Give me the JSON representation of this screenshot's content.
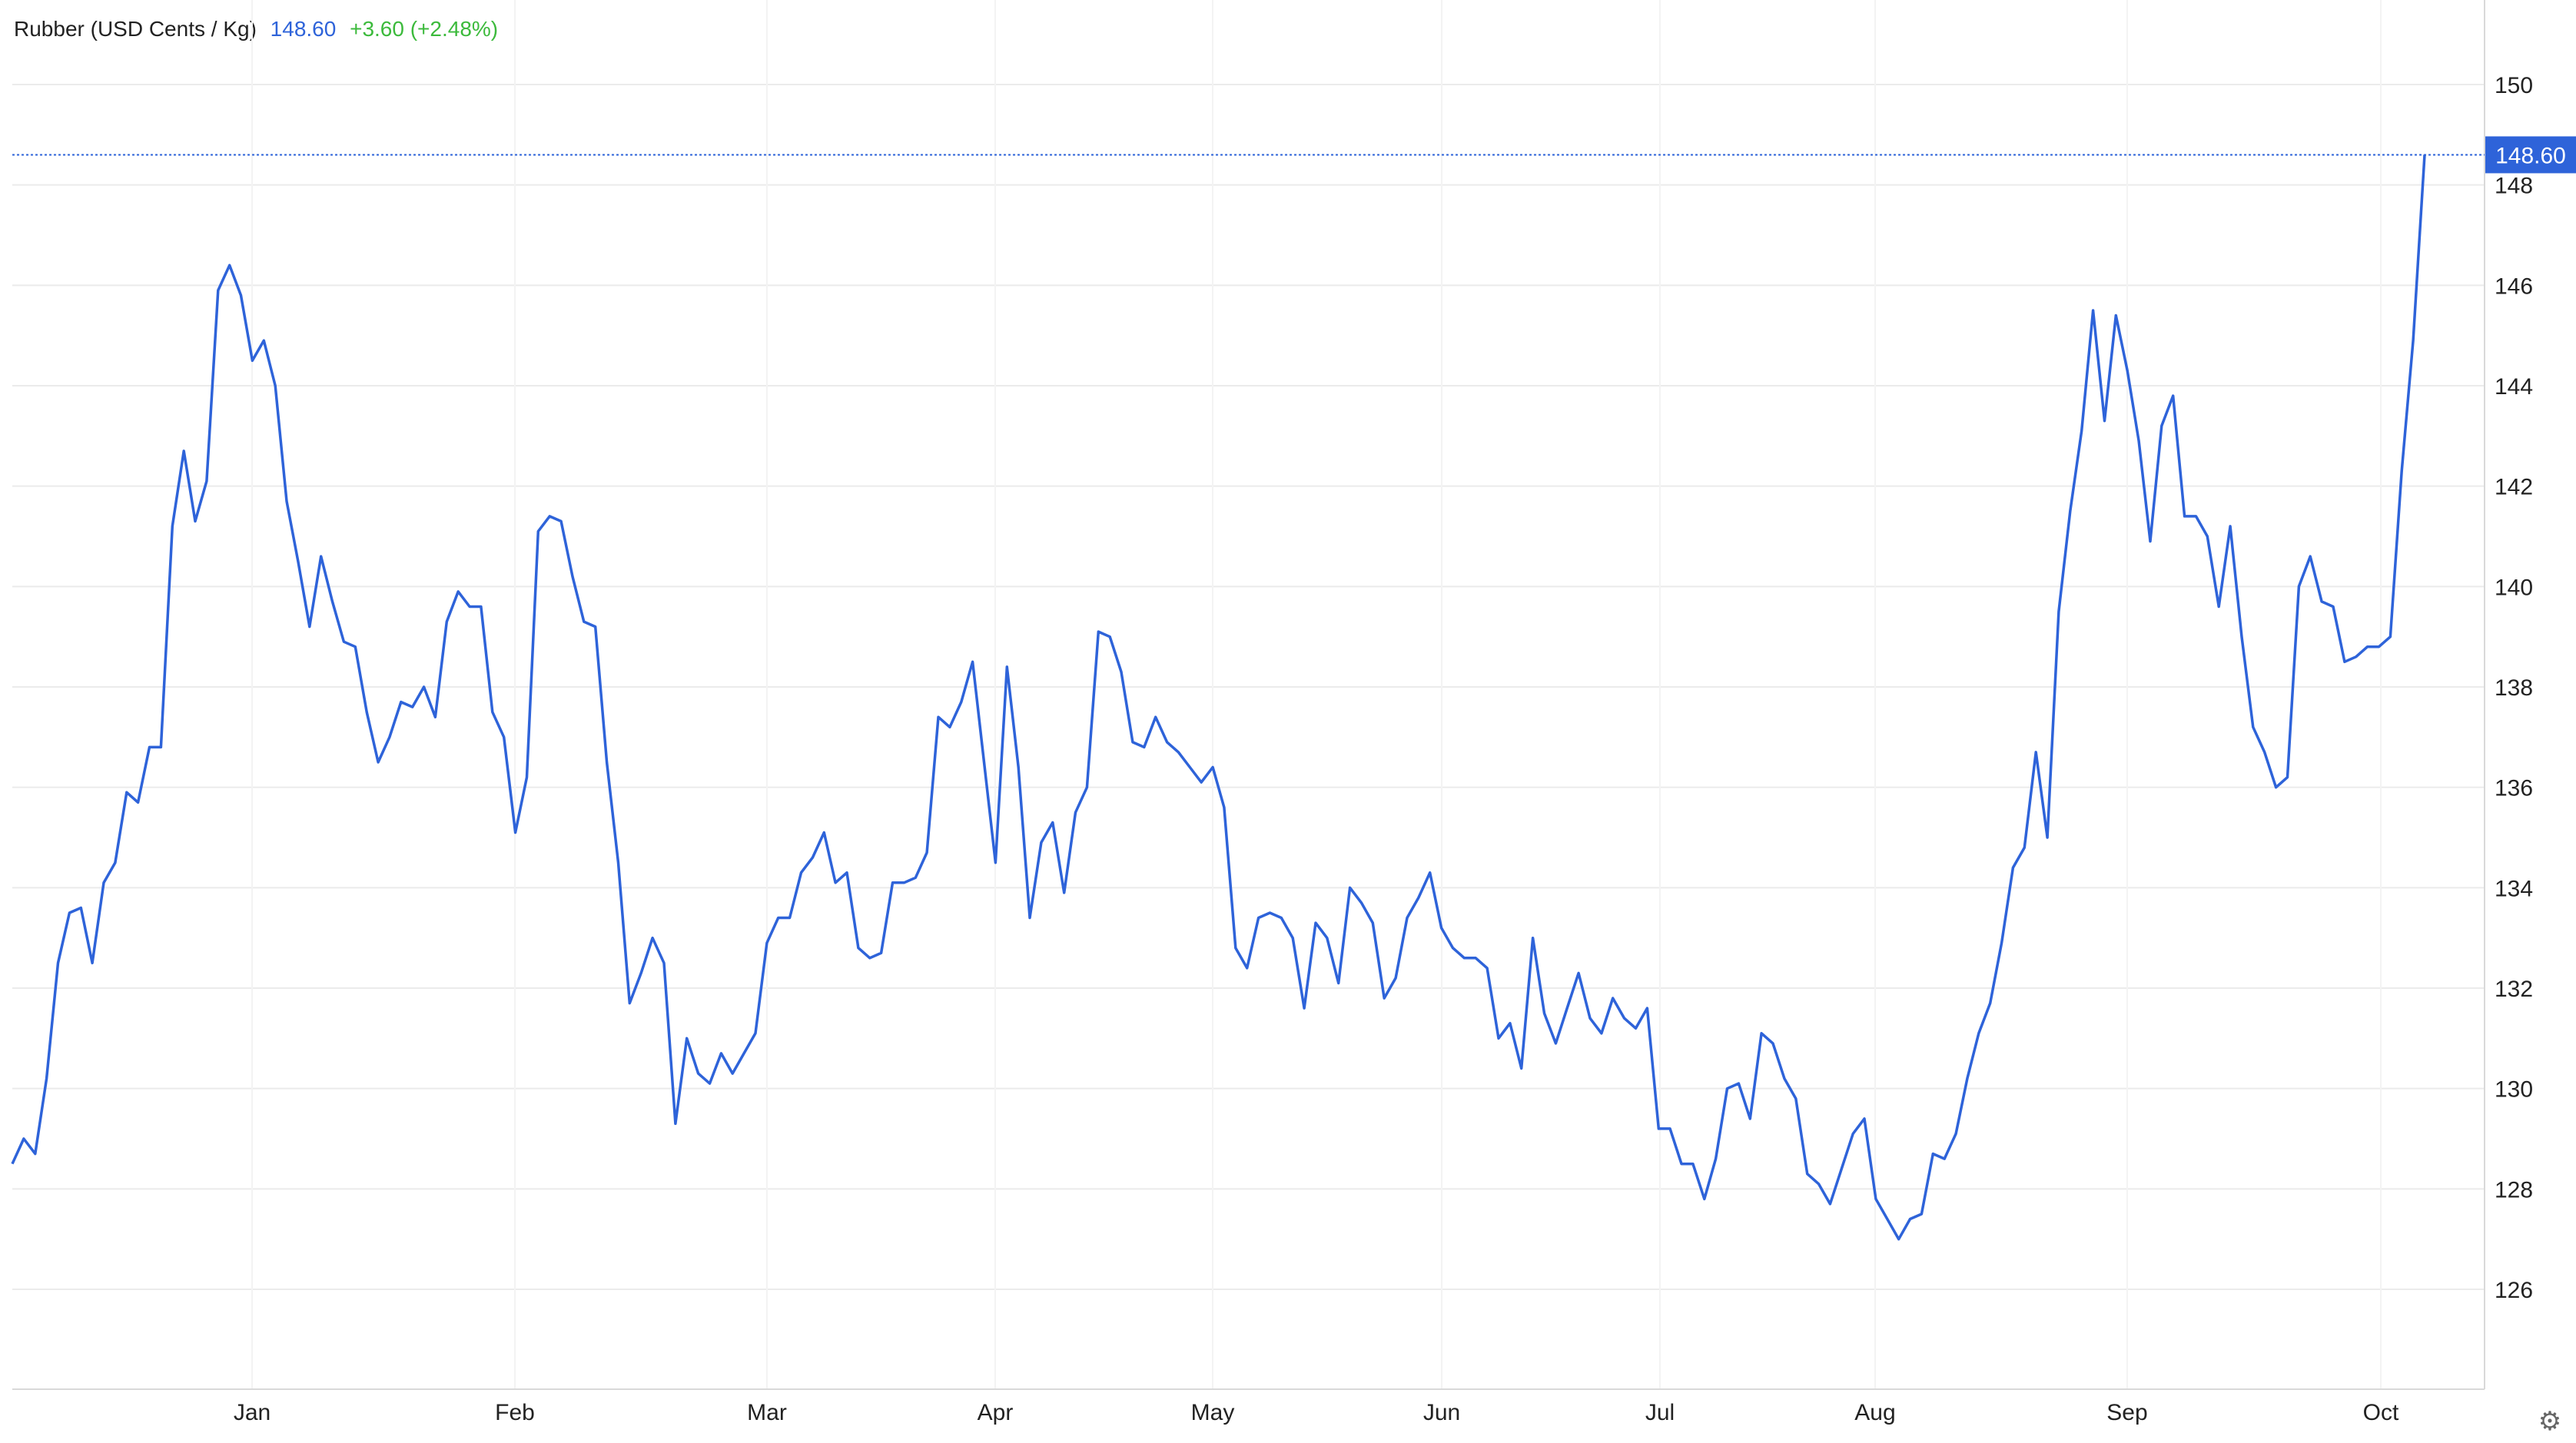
{
  "header": {
    "name": "Rubber (USD Cents / Kg)",
    "price": "148.60",
    "change": "+3.60 (+2.48%)"
  },
  "colors": {
    "line": "#2e63d9",
    "positive": "#3cba3c",
    "label_bg": "#2e63d9"
  },
  "icons": {
    "settings": "gear-icon"
  },
  "chart_data": {
    "type": "line",
    "title": "",
    "xlabel": "",
    "ylabel": "",
    "ylim": [
      124.2,
      151.6
    ],
    "yticks": [
      126,
      128,
      130,
      132,
      134,
      136,
      138,
      140,
      142,
      144,
      146,
      148,
      150
    ],
    "x_tick_labels": [
      "Jan",
      "Feb",
      "Mar",
      "Apr",
      "May",
      "Jun",
      "Jul",
      "Aug",
      "Sep",
      "Oct"
    ],
    "last_value_label": "148.60",
    "grid": true,
    "series": [
      {
        "values": [
          128.5,
          129.0,
          128.7,
          130.2,
          132.5,
          133.5,
          133.6,
          132.5,
          134.1,
          134.5,
          135.9,
          135.7,
          136.8,
          136.8,
          141.2,
          142.7,
          141.3,
          142.1,
          145.9,
          146.4,
          145.8,
          144.5,
          144.9,
          144.0,
          141.7,
          140.5,
          139.2,
          140.6,
          139.7,
          138.9,
          138.8,
          137.5,
          136.5,
          137.0,
          137.7,
          137.6,
          138.0,
          137.4,
          139.3,
          139.9,
          139.6,
          139.6,
          137.5,
          137.0,
          135.1,
          136.2,
          141.1,
          141.4,
          141.3,
          140.2,
          139.3,
          139.2,
          136.5,
          134.5,
          131.7,
          132.3,
          133.0,
          132.5,
          129.3,
          131.0,
          130.3,
          130.1,
          130.7,
          130.3,
          130.7,
          131.1,
          132.9,
          133.4,
          133.4,
          134.3,
          134.6,
          135.1,
          134.1,
          134.3,
          132.8,
          132.6,
          132.7,
          134.1,
          134.1,
          134.2,
          134.7,
          137.4,
          137.2,
          137.7,
          138.5,
          136.5,
          134.5,
          138.4,
          136.4,
          133.4,
          134.9,
          135.3,
          133.9,
          135.5,
          136.0,
          139.1,
          139.0,
          138.3,
          136.9,
          136.8,
          137.4,
          136.9,
          136.7,
          136.4,
          136.1,
          136.4,
          135.6,
          132.8,
          132.4,
          133.4,
          133.5,
          133.4,
          133.0,
          131.6,
          133.3,
          133.0,
          132.1,
          134.0,
          133.7,
          133.3,
          131.8,
          132.2,
          133.4,
          133.8,
          134.3,
          133.2,
          132.8,
          132.6,
          132.6,
          132.4,
          131.0,
          131.3,
          130.4,
          133.0,
          131.5,
          130.9,
          131.6,
          132.3,
          131.4,
          131.1,
          131.8,
          131.4,
          131.2,
          131.6,
          129.2,
          129.2,
          128.5,
          128.5,
          127.8,
          128.6,
          130.0,
          130.1,
          129.4,
          131.1,
          130.9,
          130.2,
          129.8,
          128.3,
          128.1,
          127.7,
          128.4,
          129.1,
          129.4,
          127.8,
          127.4,
          127.0,
          127.4,
          127.5,
          128.7,
          128.6,
          129.1,
          130.2,
          131.1,
          131.7,
          132.9,
          134.4,
          134.8,
          136.7,
          135.0,
          139.5,
          141.5,
          143.1,
          145.5,
          143.3,
          145.4,
          144.3,
          142.9,
          140.9,
          143.2,
          143.8,
          141.4,
          141.4,
          141.0,
          139.6,
          141.2,
          139.0,
          137.2,
          136.7,
          136.0,
          136.2,
          140.0,
          140.6,
          139.7,
          139.6,
          138.5,
          138.6,
          138.8,
          138.8,
          139.0,
          142.3,
          144.9,
          148.6
        ]
      }
    ]
  }
}
